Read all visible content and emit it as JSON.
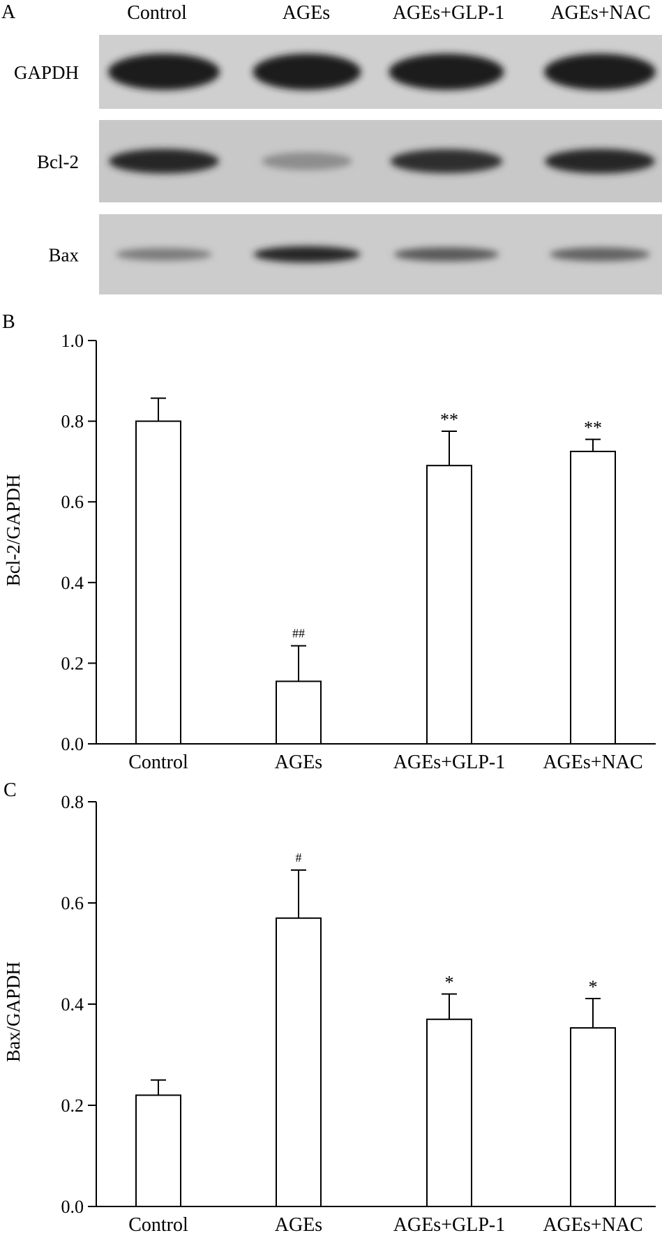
{
  "panels": {
    "a": {
      "letter": "A",
      "lanes": [
        "Control",
        "AGEs",
        "AGEs+GLP-1",
        "AGEs+NAC"
      ],
      "rows": [
        {
          "label": "GAPDH",
          "band_intensity": [
            1.0,
            1.0,
            1.0,
            1.0
          ]
        },
        {
          "label": "Bcl-2",
          "band_intensity": [
            0.95,
            0.35,
            0.9,
            0.95
          ]
        },
        {
          "label": "Bax",
          "band_intensity": [
            0.45,
            0.95,
            0.65,
            0.6
          ]
        }
      ]
    },
    "b": {
      "letter": "B"
    },
    "c": {
      "letter": "C"
    }
  },
  "chart_data": [
    {
      "type": "bar",
      "panel": "B",
      "categories": [
        "Control",
        "AGEs",
        "AGEs+GLP-1",
        "AGEs+NAC"
      ],
      "values": [
        0.8,
        0.155,
        0.69,
        0.725
      ],
      "errors": [
        0.057,
        0.088,
        0.085,
        0.03
      ],
      "annotations": [
        "",
        "##",
        "**",
        "**"
      ],
      "xlabel": "",
      "ylabel": "Bcl-2/GAPDH",
      "ylim": [
        0,
        1.0
      ],
      "yticks": [
        0.0,
        0.2,
        0.4,
        0.6,
        0.8,
        1.0
      ],
      "ytick_labels": [
        "0.0",
        "0.2",
        "0.4",
        "0.6",
        "0.8",
        "1.0"
      ],
      "grid": false
    },
    {
      "type": "bar",
      "panel": "C",
      "categories": [
        "Control",
        "AGEs",
        "AGEs+GLP-1",
        "AGEs+NAC"
      ],
      "values": [
        0.22,
        0.57,
        0.37,
        0.353
      ],
      "errors": [
        0.03,
        0.095,
        0.05,
        0.058
      ],
      "annotations": [
        "",
        "#",
        "*",
        "*"
      ],
      "xlabel": "",
      "ylabel": "Bax/GAPDH",
      "ylim": [
        0,
        0.8
      ],
      "yticks": [
        0.0,
        0.2,
        0.4,
        0.6,
        0.8
      ],
      "ytick_labels": [
        "0.0",
        "0.2",
        "0.4",
        "0.6",
        "0.8"
      ],
      "grid": false
    }
  ]
}
